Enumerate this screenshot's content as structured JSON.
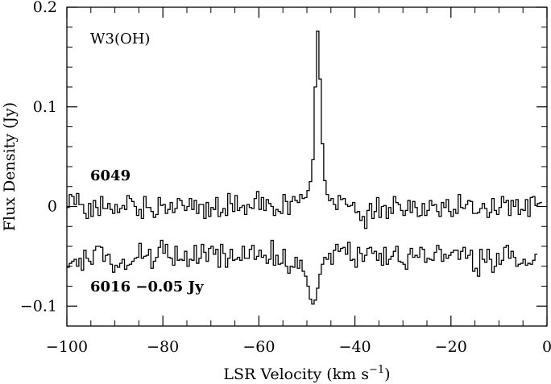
{
  "chart_data": {
    "type": "line",
    "style": "step",
    "title": "",
    "xlabel": "LSR Velocity (km s",
    "xlabel_superscript": "−1",
    "xlabel_close": ")",
    "ylabel": "Flux Density (Jy)",
    "xlim": [
      -100,
      0
    ],
    "ylim": [
      -0.12,
      0.2
    ],
    "x_ticks": [
      -100,
      -80,
      -60,
      -40,
      -20,
      0
    ],
    "x_tick_labels": [
      "−100",
      "−80",
      "−60",
      "−40",
      "−20",
      "0"
    ],
    "y_ticks": [
      -0.1,
      0,
      0.1,
      0.2
    ],
    "y_tick_labels": [
      "−0.1",
      "0",
      "0.1",
      "0.2"
    ],
    "source_label": "W3(OH)",
    "series": [
      {
        "name": "6049",
        "label": "6049",
        "offset": 0,
        "x_start": -100,
        "x_step": 0.5,
        "values": [
          -0.001,
          0.012,
          0.01,
          0.002,
          0.013,
          0.002,
          0.002,
          -0.007,
          -0.012,
          0.003,
          -0.01,
          0.006,
          -0.001,
          -0.009,
          0.01,
          -0.002,
          -0.002,
          0.003,
          -0.003,
          -0.007,
          0.002,
          -0.006,
          -0.002,
          0.001,
          -0.003,
          0.011,
          0.008,
          0.005,
          0.0,
          -0.009,
          -0.003,
          -0.012,
          0.01,
          -0.001,
          -0.001,
          -0.005,
          -0.011,
          -0.008,
          0.009,
          0.001,
          0.002,
          -0.007,
          -0.003,
          0.004,
          -0.006,
          -0.002,
          0.008,
          0.006,
          0.001,
          -0.004,
          0.0,
          0.008,
          -0.003,
          0.006,
          -0.007,
          0.002,
          0.002,
          -0.012,
          0.004,
          -0.01,
          -0.001,
          -0.003,
          0.009,
          -0.01,
          -0.006,
          -0.002,
          -0.009,
          0.013,
          0.003,
          -0.005,
          0.011,
          -0.004,
          -0.001,
          0.001,
          -0.008,
          0.002,
          -0.001,
          -0.002,
          0.008,
          0.015,
          -0.003,
          0.009,
          -0.004,
          0.007,
          0.003,
          0.0,
          -0.009,
          -0.003,
          -0.005,
          -0.007,
          0.012,
          0.005,
          -0.008,
          0.005,
          0.01,
          0.006,
          0.004,
          0.012,
          0.008,
          0.009,
          0.016,
          0.025,
          0.047,
          0.12,
          0.176,
          0.128,
          0.063,
          0.026,
          0.012,
          0.006,
          0.008,
          0.002,
          -0.003,
          0.011,
          0.007,
          0.008,
          0.002,
          0.0,
          0.001,
          0.004,
          -0.006,
          -0.005,
          -0.014,
          -0.01,
          -0.022,
          -0.004,
          0.003,
          -0.012,
          -0.005,
          0.009,
          -0.011,
          0.0,
          0.001,
          -0.012,
          -0.001,
          -0.007,
          0.01,
          0.004,
          0.002,
          -0.004,
          -0.009,
          -0.004,
          0.006,
          -0.006,
          0.005,
          -0.001,
          -0.01,
          -0.009,
          0.003,
          -0.009,
          -0.004,
          0.006,
          0.001,
          0.002,
          -0.005,
          -0.01,
          0.004,
          -0.001,
          0.007,
          -0.005,
          -0.01,
          -0.003,
          -0.007,
          0.012,
          -0.001,
          -0.002,
          0.002,
          0.006,
          0.005,
          -0.007,
          -0.007,
          -0.006,
          -0.002,
          0.003,
          -0.002,
          -0.011,
          -0.006,
          0.008,
          -0.004,
          -0.008,
          -0.001,
          0.01,
          0.004,
          0.006,
          -0.009,
          0.006,
          0.0,
          0.007,
          -0.008,
          -0.003,
          -0.004,
          0.007,
          -0.01,
          0.009,
          0.01,
          0.001,
          0.003,
          0.004
        ]
      },
      {
        "name": "6016",
        "label": "6016 −0.05 Jy",
        "offset": -0.05,
        "x_start": -100,
        "x_step": 0.5,
        "values": [
          -0.011,
          -0.007,
          -0.005,
          -0.003,
          -0.01,
          -0.002,
          -0.014,
          0.006,
          -0.002,
          -0.005,
          -0.008,
          0.006,
          0.01,
          0.01,
          0.009,
          -0.005,
          0.001,
          0.002,
          -0.008,
          -0.016,
          -0.009,
          -0.011,
          -0.007,
          -0.003,
          -0.013,
          -0.009,
          -0.008,
          -0.005,
          -0.002,
          -0.001,
          0.013,
          -0.002,
          0.0,
          0.001,
          0.007,
          -0.012,
          -0.005,
          -0.001,
          0.009,
          0.016,
          0.003,
          0.012,
          -0.001,
          -0.002,
          -0.009,
          0.01,
          -0.004,
          -0.003,
          -0.004,
          0.005,
          -0.01,
          -0.003,
          -0.004,
          0.011,
          -0.007,
          -0.002,
          0.012,
          0.004,
          -0.005,
          0.008,
          0.01,
          0.002,
          0.007,
          -0.011,
          0.012,
          0.003,
          -0.011,
          -0.002,
          0.007,
          -0.004,
          -0.003,
          -0.001,
          -0.004,
          0.01,
          -0.002,
          -0.002,
          0.007,
          0.011,
          -0.003,
          0.0,
          0.006,
          -0.001,
          0.001,
          -0.007,
          -0.003,
          0.016,
          -0.009,
          0.001,
          -0.008,
          -0.007,
          0.007,
          -0.01,
          -0.017,
          -0.01,
          -0.011,
          -0.001,
          -0.012,
          -0.004,
          -0.015,
          -0.02,
          -0.03,
          -0.043,
          -0.048,
          -0.044,
          -0.032,
          -0.018,
          -0.008,
          -0.001,
          -0.003,
          0.003,
          -0.008,
          0.006,
          0.012,
          0.005,
          0.008,
          0.009,
          0.002,
          0.014,
          -0.004,
          -0.003,
          -0.011,
          0.009,
          0.003,
          -0.005,
          0.001,
          0.008,
          0.009,
          0.003,
          0.005,
          -0.004,
          0.003,
          -0.009,
          0.009,
          -0.008,
          -0.003,
          0.0,
          0.005,
          0.01,
          -0.005,
          -0.006,
          -0.008,
          -0.013,
          0.002,
          0.008,
          -0.001,
          0.001,
          -0.001,
          0.009,
          0.007,
          -0.006,
          -0.002,
          -0.003,
          -0.004,
          0.004,
          0.011,
          0.007,
          -0.005,
          0.002,
          -0.002,
          0.001,
          0.004,
          0.006,
          0.006,
          -0.003,
          0.005,
          0.009,
          -0.002,
          0.001,
          0.006,
          -0.015,
          -0.012,
          -0.02,
          0.007,
          -0.003,
          -0.006,
          0.007,
          -0.003,
          -0.016,
          -0.01,
          0.003,
          -0.008,
          -0.004,
          0.009,
          0.011,
          -0.002,
          0.005,
          -0.001,
          -0.01,
          -0.008,
          -0.007,
          -0.003,
          -0.009,
          -0.007,
          -0.008,
          -0.004,
          0.002
        ]
      }
    ]
  }
}
